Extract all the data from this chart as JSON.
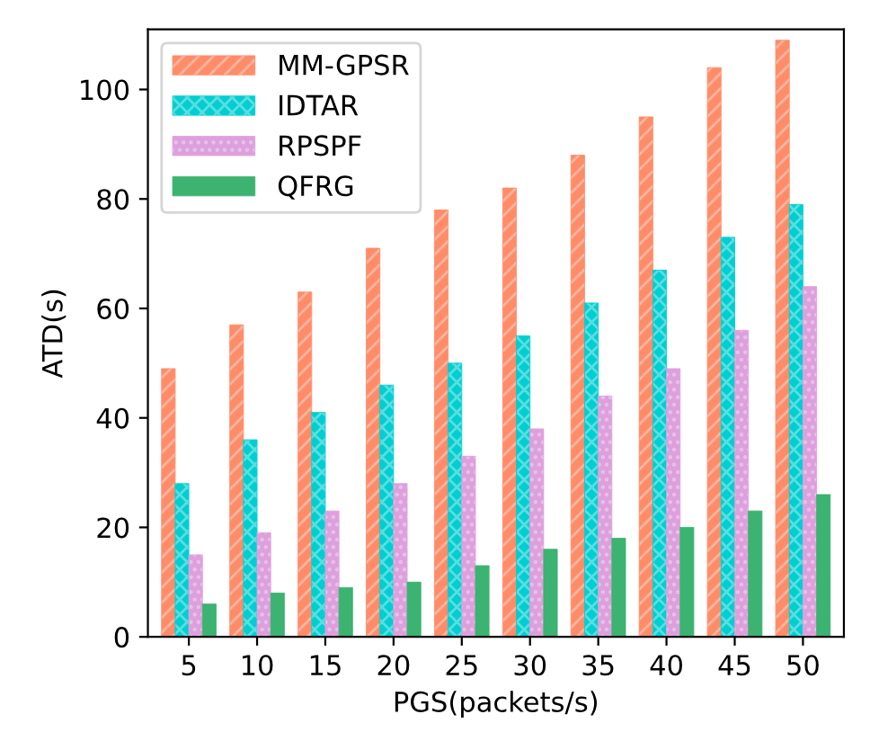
{
  "chart_data": {
    "type": "bar",
    "xlabel": "PGS(packets/s)",
    "ylabel": "ATD(s)",
    "categories": [
      "5",
      "10",
      "15",
      "20",
      "25",
      "30",
      "35",
      "40",
      "45",
      "50"
    ],
    "series": [
      {
        "name": "MM-GPSR",
        "color": "#ff8c69",
        "values": [
          49,
          57,
          63,
          71,
          78,
          82,
          88,
          95,
          104,
          109
        ]
      },
      {
        "name": "IDTAR",
        "color": "#00ced1",
        "values": [
          28,
          36,
          41,
          46,
          50,
          55,
          61,
          67,
          73,
          79
        ]
      },
      {
        "name": "RPSPF",
        "color": "#dda0dd",
        "values": [
          15,
          19,
          23,
          28,
          33,
          38,
          44,
          49,
          56,
          64
        ]
      },
      {
        "name": "QFRG",
        "color": "#3cb371",
        "values": [
          6,
          8,
          9,
          10,
          13,
          16,
          18,
          20,
          23,
          26
        ]
      }
    ],
    "ylim": [
      0,
      111
    ],
    "yticks": [
      0,
      20,
      40,
      60,
      80,
      100
    ],
    "grid": false,
    "legend": "top left"
  }
}
